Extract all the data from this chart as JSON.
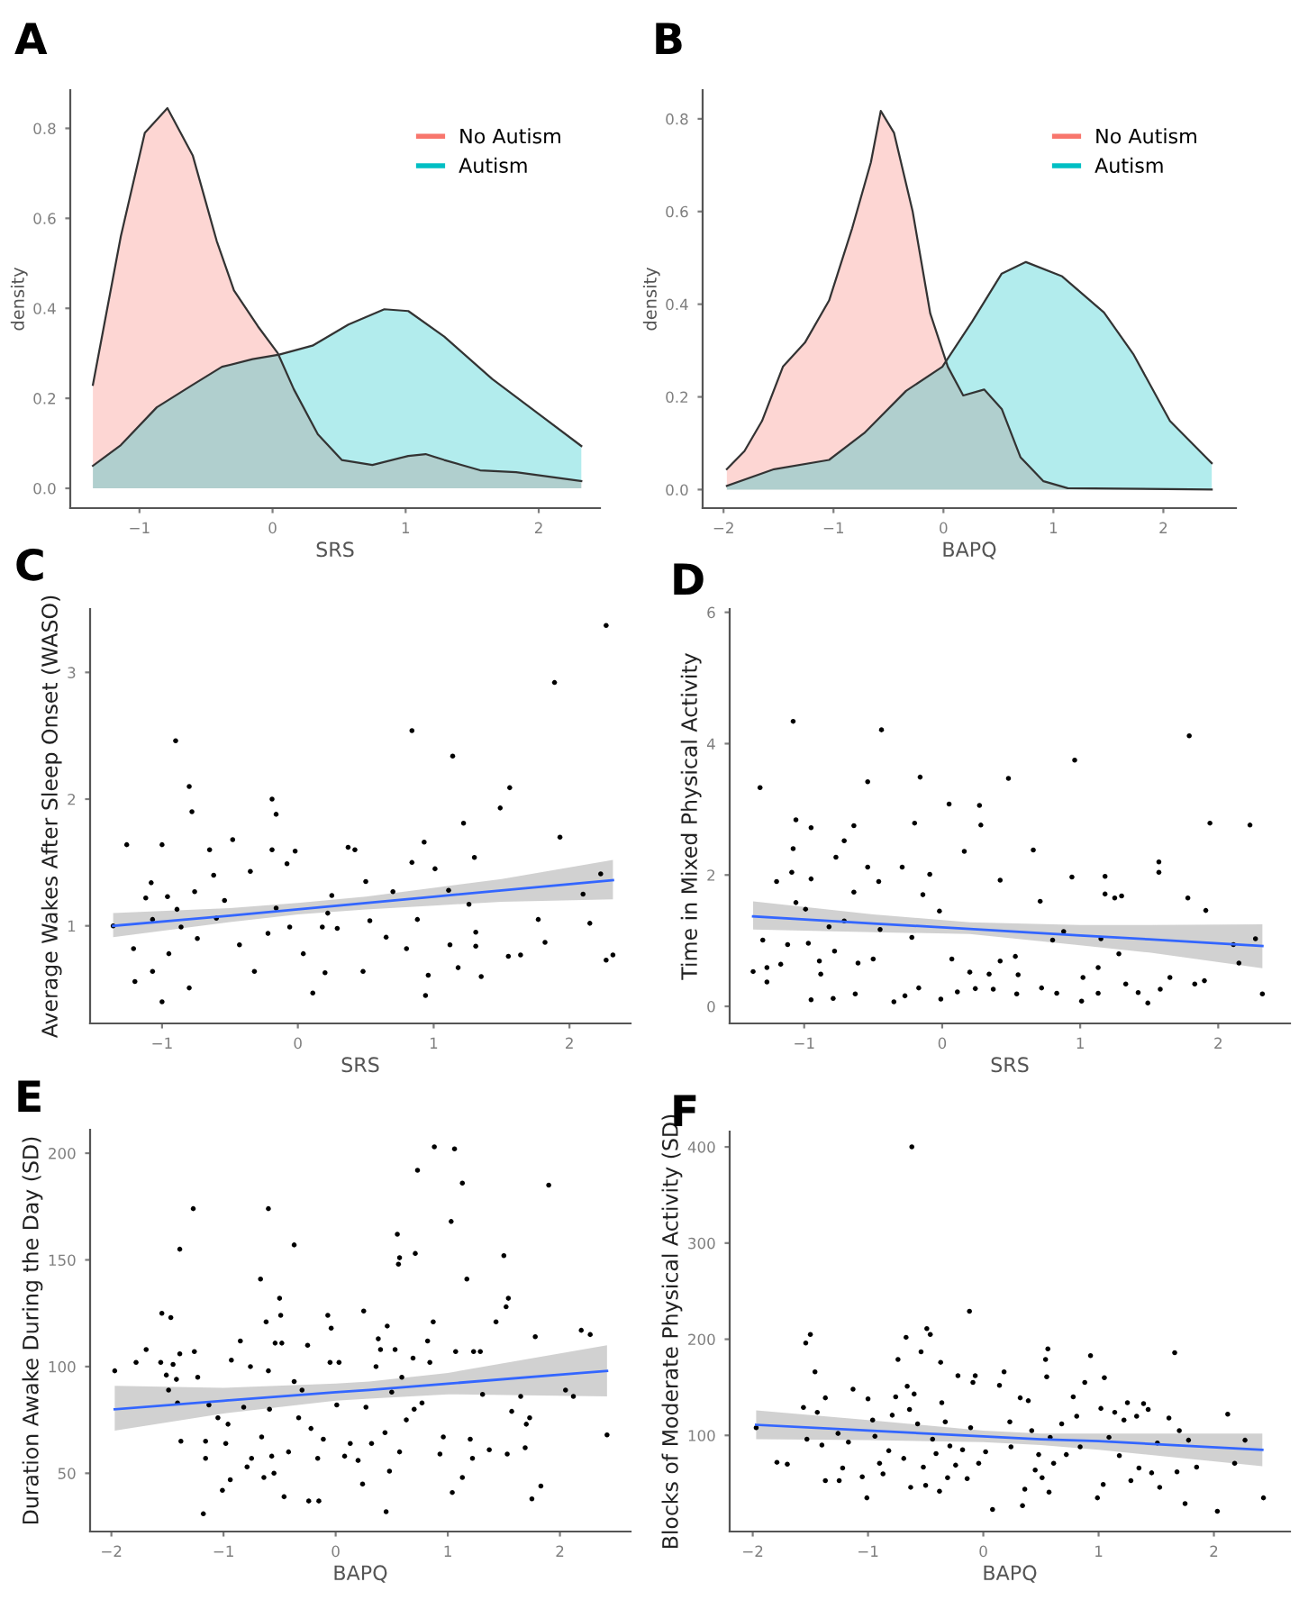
{
  "chart_data": [
    {
      "type": "area",
      "title": "A",
      "xlabel": "SRS",
      "ylabel": "density",
      "xlim": [
        -1.52,
        2.46
      ],
      "ylim": [
        -0.044,
        0.885
      ],
      "xticks": [
        -1,
        0,
        1,
        2
      ],
      "yticks": [
        {
          "value": 0,
          "label": "0.0"
        },
        0.2,
        0.4,
        0.6,
        0.8
      ],
      "legend": "top right",
      "series": [
        {
          "name": "No Autism",
          "color": "#f8766d",
          "x": [
            -1.35,
            -1.14,
            -0.96,
            -0.79,
            -0.6,
            -0.42,
            -0.29,
            -0.11,
            0.04,
            0.16,
            0.34,
            0.52,
            0.75,
            1.02,
            1.15,
            1.29,
            1.56,
            1.83,
            2.32
          ],
          "values": [
            0.23,
            0.56,
            0.79,
            0.845,
            0.74,
            0.55,
            0.44,
            0.36,
            0.3,
            0.22,
            0.12,
            0.063,
            0.052,
            0.072,
            0.076,
            0.063,
            0.04,
            0.036,
            0.016
          ]
        },
        {
          "name": "Autism",
          "color": "#00bfc4",
          "x": [
            -1.35,
            -1.14,
            -0.87,
            -0.6,
            -0.38,
            -0.15,
            0.05,
            0.3,
            0.57,
            0.84,
            1.02,
            1.29,
            1.65,
            2.01,
            2.32
          ],
          "values": [
            0.05,
            0.096,
            0.18,
            0.23,
            0.27,
            0.287,
            0.297,
            0.317,
            0.364,
            0.398,
            0.394,
            0.337,
            0.243,
            0.163,
            0.094
          ]
        }
      ]
    },
    {
      "type": "area",
      "title": "B",
      "xlabel": "BAPQ",
      "ylabel": "density",
      "xlim": [
        -2.19,
        2.66
      ],
      "ylim": [
        -0.04,
        0.862
      ],
      "xticks": [
        -2,
        -1,
        0,
        1,
        2
      ],
      "yticks": [
        {
          "value": 0,
          "label": "0.0"
        },
        0.2,
        0.4,
        0.6,
        0.8
      ],
      "legend": "top right",
      "series": [
        {
          "name": "No Autism",
          "color": "#f8766d",
          "x": [
            -1.97,
            -1.81,
            -1.65,
            -1.46,
            -1.26,
            -1.04,
            -0.83,
            -0.66,
            -0.57,
            -0.45,
            -0.28,
            -0.12,
            0.04,
            0.18,
            0.37,
            0.53,
            0.7,
            0.91,
            1.13,
            2.44
          ],
          "values": [
            0.044,
            0.083,
            0.148,
            0.265,
            0.317,
            0.408,
            0.564,
            0.706,
            0.817,
            0.77,
            0.6,
            0.38,
            0.265,
            0.203,
            0.216,
            0.174,
            0.07,
            0.018,
            0.003,
            0
          ]
        },
        {
          "name": "Autism",
          "color": "#00bfc4",
          "x": [
            -1.97,
            -1.54,
            -1.04,
            -0.72,
            -0.34,
            -0.01,
            0.26,
            0.53,
            0.75,
            1.08,
            1.46,
            1.73,
            2.06,
            2.44
          ],
          "values": [
            0.008,
            0.044,
            0.064,
            0.122,
            0.213,
            0.265,
            0.362,
            0.466,
            0.491,
            0.46,
            0.382,
            0.291,
            0.148,
            0.057
          ]
        }
      ]
    },
    {
      "type": "scatter",
      "title": "C",
      "xlabel": "SRS",
      "ylabel": "Average Wakes After Sleep Onset (WASO)",
      "xlim": [
        -1.53,
        2.45
      ],
      "ylim": [
        0.23,
        3.5
      ],
      "xticks": [
        -1,
        0,
        1,
        2
      ],
      "yticks": [
        1,
        2,
        3
      ],
      "series": [
        {
          "type": "scatter",
          "color": "#000000",
          "marker": "circle",
          "x": [
            -1.36,
            -1.26,
            -1.21,
            -1.2,
            -1.0,
            -1.0,
            -0.9,
            -0.8,
            -0.78,
            -0.8,
            -0.65,
            -0.48,
            -0.19,
            -0.19,
            -0.16,
            -0.02,
            0.11,
            0.25,
            0.37,
            0.42,
            0.5,
            0.48,
            0.84,
            0.84,
            0.93,
            0.94,
            0.96,
            1.14,
            1.12,
            1.18,
            1.22,
            1.3,
            1.35,
            1.49,
            1.56,
            1.55,
            1.64,
            1.77,
            1.82,
            1.89,
            1.93,
            2.1,
            2.15,
            2.23,
            2.27,
            2.27,
            2.32,
            -1.08,
            -1.12,
            -1.07,
            -1.07,
            -0.96,
            -0.95,
            -0.89,
            -0.86,
            -0.76,
            -0.74,
            -0.62,
            -0.6,
            -0.54,
            -0.43,
            -0.35,
            -0.32,
            -0.22,
            -0.16,
            -0.08,
            -0.06,
            0.04,
            0.18,
            0.22,
            0.2,
            0.29,
            0.53,
            0.65,
            0.7,
            0.8,
            0.88,
            1.01,
            1.11,
            1.26,
            1.31,
            1.31
          ],
          "values": [
            1.0,
            1.64,
            0.82,
            0.56,
            0.4,
            1.64,
            2.46,
            2.1,
            1.9,
            0.51,
            1.6,
            1.68,
            1.6,
            2.0,
            1.88,
            1.59,
            0.47,
            1.24,
            1.62,
            1.6,
            1.35,
            0.64,
            1.5,
            2.54,
            1.66,
            0.45,
            0.61,
            2.34,
            0.85,
            0.67,
            1.81,
            1.54,
            0.6,
            1.93,
            2.09,
            0.76,
            0.77,
            1.05,
            0.87,
            2.92,
            1.7,
            1.25,
            1.02,
            1.41,
            3.37,
            0.73,
            0.77,
            1.34,
            1.22,
            1.05,
            0.64,
            1.23,
            0.78,
            1.13,
            0.99,
            1.27,
            0.9,
            1.4,
            1.06,
            1.2,
            0.85,
            1.43,
            0.64,
            0.94,
            1.14,
            1.49,
            0.99,
            0.78,
            0.99,
            1.1,
            0.63,
            0.98,
            1.04,
            0.91,
            1.27,
            0.82,
            1.05,
            1.45,
            1.28,
            1.17,
            0.95,
            0.84
          ]
        },
        {
          "type": "line",
          "color": "#3366ff",
          "x": [
            -1.36,
            -0.5,
            0,
            0.5,
            1,
            1.5,
            2.32
          ],
          "values": [
            1.0,
            1.08,
            1.13,
            1.18,
            1.23,
            1.28,
            1.36
          ],
          "lower": [
            0.91,
            1.03,
            1.09,
            1.13,
            1.16,
            1.19,
            1.21
          ],
          "upper": [
            1.1,
            1.14,
            1.18,
            1.23,
            1.3,
            1.37,
            1.52
          ]
        }
      ]
    },
    {
      "type": "scatter",
      "title": "D",
      "xlabel": "SRS",
      "ylabel": "Time in Mixed Physical Activity",
      "xlim": [
        -1.54,
        2.52
      ],
      "ylim": [
        -0.26,
        6.05
      ],
      "xticks": [
        -1,
        0,
        1,
        2
      ],
      "yticks": [
        0,
        2,
        4,
        6
      ],
      "series": [
        {
          "type": "scatter",
          "color": "#000000",
          "marker": "circle",
          "x": [
            -1.37,
            -1.32,
            -1.3,
            -1.27,
            -1.27,
            -1.2,
            -1.17,
            -1.12,
            -1.08,
            -1.08,
            -1.06,
            -1.09,
            -1.06,
            -0.99,
            -0.97,
            -0.95,
            -0.95,
            -0.95,
            -0.89,
            -0.88,
            -0.82,
            -0.77,
            -0.79,
            -0.78,
            -0.71,
            -0.71,
            -0.64,
            -0.64,
            -0.63,
            -0.61,
            -0.54,
            -0.54,
            -0.5,
            -0.46,
            -0.44,
            -0.45,
            -0.35,
            -0.29,
            -0.27,
            -0.22,
            -0.2,
            -0.17,
            -0.16,
            -0.14,
            -0.09,
            -0.02,
            -0.01,
            0.05,
            0.07,
            0.11,
            0.16,
            0.2,
            0.24,
            0.27,
            0.28,
            0.34,
            0.37,
            0.42,
            0.42,
            0.48,
            0.53,
            0.55,
            0.54,
            0.66,
            0.71,
            0.72,
            0.8,
            0.83,
            0.88,
            0.94,
            0.96,
            1.01,
            1.02,
            1.13,
            1.13,
            1.15,
            1.18,
            1.18,
            1.25,
            1.28,
            1.3,
            1.33,
            1.42,
            1.49,
            1.57,
            1.57,
            1.58,
            1.65,
            1.78,
            1.79,
            1.83,
            1.9,
            1.91,
            1.94,
            2.11,
            2.15,
            2.23,
            2.27,
            2.32
          ],
          "values": [
            0.53,
            3.33,
            1.01,
            0.59,
            0.37,
            1.9,
            0.64,
            0.94,
            2.4,
            4.34,
            2.84,
            2.04,
            1.58,
            1.48,
            0.96,
            0.1,
            2.72,
            1.94,
            0.69,
            0.49,
            1.21,
            2.27,
            0.12,
            0.84,
            2.52,
            1.3,
            2.75,
            1.74,
            0.19,
            0.66,
            2.12,
            3.42,
            0.72,
            1.9,
            4.21,
            1.17,
            0.07,
            2.12,
            0.16,
            1.05,
            2.79,
            0.28,
            3.49,
            1.7,
            2.01,
            1.45,
            0.11,
            3.08,
            0.72,
            0.22,
            2.36,
            0.52,
            0.27,
            3.06,
            2.76,
            0.49,
            0.26,
            1.92,
            0.69,
            3.47,
            0.76,
            0.48,
            0.19,
            2.38,
            1.6,
            0.28,
            1.01,
            0.2,
            1.14,
            1.97,
            3.75,
            0.08,
            0.44,
            0.59,
            0.2,
            1.03,
            1.98,
            1.71,
            1.65,
            0.8,
            1.68,
            0.34,
            0.21,
            0.05,
            2.2,
            2.04,
            0.26,
            0.44,
            1.65,
            4.12,
            0.34,
            0.39,
            1.46,
            2.79,
            0.94,
            0.66,
            2.76,
            1.03,
            0.19
          ]
        },
        {
          "type": "line",
          "color": "#3366ff",
          "x": [
            -1.37,
            -0.5,
            0.2,
            1,
            1.5,
            2.32
          ],
          "values": [
            1.37,
            1.26,
            1.18,
            1.08,
            1.02,
            0.92
          ],
          "lower": [
            1.17,
            1.13,
            1.1,
            0.93,
            0.82,
            0.58
          ],
          "upper": [
            1.6,
            1.4,
            1.28,
            1.24,
            1.24,
            1.25
          ]
        }
      ]
    },
    {
      "type": "scatter",
      "title": "E",
      "xlabel": "BAPQ",
      "ylabel": "Duration Awake During the Day (SD)",
      "xlim": [
        -2.19,
        2.63
      ],
      "ylim": [
        22.7,
        211
      ],
      "xticks": [
        -2,
        -1,
        0,
        1,
        2
      ],
      "yticks": [
        50,
        100,
        150,
        200
      ],
      "series": [
        {
          "type": "scatter",
          "color": "#000000",
          "marker": "circle",
          "x": [
            -1.97,
            -1.78,
            -1.69,
            -1.55,
            -1.56,
            -1.51,
            -1.47,
            -1.49,
            -1.45,
            -1.42,
            -1.41,
            -1.39,
            -1.39,
            -1.38,
            -1.27,
            -1.26,
            -1.23,
            -1.16,
            -1.16,
            -1.18,
            -1.13,
            -1.05,
            -1.01,
            -0.98,
            -0.96,
            -0.94,
            -0.93,
            -0.85,
            -0.82,
            -0.79,
            -0.76,
            -0.75,
            -0.67,
            -0.66,
            -0.64,
            -0.62,
            -0.6,
            -0.6,
            -0.59,
            -0.57,
            -0.55,
            -0.54,
            -0.5,
            -0.49,
            -0.48,
            -0.46,
            -0.42,
            -0.37,
            -0.37,
            -0.33,
            -0.3,
            -0.25,
            -0.24,
            -0.22,
            -0.15,
            -0.16,
            -0.11,
            -0.07,
            -0.05,
            -0.04,
            0.01,
            0.03,
            0.08,
            0.13,
            0.2,
            0.24,
            0.25,
            0.27,
            0.32,
            0.36,
            0.38,
            0.4,
            0.44,
            0.45,
            0.46,
            0.48,
            0.5,
            0.53,
            0.55,
            0.56,
            0.57,
            0.57,
            0.59,
            0.63,
            0.69,
            0.7,
            0.71,
            0.73,
            0.77,
            0.82,
            0.84,
            0.87,
            0.88,
            0.93,
            0.96,
            1.03,
            1.04,
            1.06,
            1.07,
            1.13,
            1.13,
            1.17,
            1.2,
            1.22,
            1.23,
            1.29,
            1.31,
            1.37,
            1.43,
            1.5,
            1.52,
            1.54,
            1.53,
            1.57,
            1.65,
            1.69,
            1.7,
            1.73,
            1.75,
            1.78,
            1.83,
            1.9,
            2.05,
            2.12,
            2.19,
            2.27,
            2.42
          ],
          "values": [
            98,
            102,
            108,
            125,
            102,
            96,
            123,
            89,
            101,
            94,
            83,
            155,
            106,
            65,
            174,
            107,
            95,
            65,
            57,
            31,
            82,
            76,
            42,
            64,
            73,
            47,
            103,
            112,
            81,
            53,
            100,
            57,
            141,
            67,
            48,
            121,
            174,
            98,
            80,
            58,
            50,
            111,
            132,
            124,
            111,
            39,
            60,
            157,
            93,
            76,
            89,
            110,
            37,
            71,
            37,
            57,
            66,
            124,
            102,
            118,
            82,
            102,
            58,
            64,
            56,
            45,
            126,
            81,
            64,
            100,
            113,
            108,
            69,
            32,
            119,
            51,
            88,
            108,
            162,
            148,
            151,
            60,
            95,
            75,
            104,
            80,
            153,
            192,
            83,
            112,
            102,
            121,
            203,
            59,
            67,
            168,
            41,
            202,
            107,
            48,
            186,
            141,
            66,
            57,
            107,
            107,
            87,
            61,
            121,
            152,
            128,
            132,
            59,
            79,
            86,
            62,
            73,
            76,
            38,
            114,
            44,
            185,
            89,
            86,
            117,
            115,
            68
          ]
        },
        {
          "type": "line",
          "color": "#3366ff",
          "x": [
            -1.97,
            -1,
            0,
            0.3,
            1,
            2.42
          ],
          "values": [
            80,
            84,
            88,
            89,
            92,
            98
          ],
          "lower": [
            70,
            78,
            84,
            85,
            87,
            86
          ],
          "upper": [
            91,
            90,
            92,
            93,
            97,
            110
          ]
        }
      ]
    },
    {
      "type": "scatter",
      "title": "F",
      "xlabel": "BAPQ",
      "ylabel": "Blocks of Moderate Physical Activity (SD)",
      "xlim": [
        -2.2,
        2.66
      ],
      "ylim": [
        0,
        416
      ],
      "xticks": [
        -2,
        -1,
        0,
        1,
        2
      ],
      "yticks": [
        100,
        200,
        300,
        400
      ],
      "series": [
        {
          "type": "scatter",
          "color": "#000000",
          "marker": "circle",
          "x": [
            -1.97,
            -1.79,
            -1.7,
            -1.56,
            -1.54,
            -1.5,
            -1.53,
            -1.46,
            -1.44,
            -1.4,
            -1.37,
            -1.37,
            -1.26,
            -1.25,
            -1.22,
            -1.17,
            -1.13,
            -1.05,
            -1.01,
            -1.0,
            -0.96,
            -0.94,
            -0.9,
            -0.87,
            -0.82,
            -0.79,
            -0.76,
            -0.74,
            -0.69,
            -0.67,
            -0.66,
            -0.64,
            -0.63,
            -0.62,
            -0.6,
            -0.57,
            -0.54,
            -0.52,
            -0.5,
            -0.49,
            -0.46,
            -0.44,
            -0.41,
            -0.38,
            -0.37,
            -0.36,
            -0.33,
            -0.31,
            -0.29,
            -0.24,
            -0.22,
            -0.18,
            -0.14,
            -0.12,
            -0.11,
            -0.09,
            -0.07,
            -0.04,
            0.02,
            0.08,
            0.14,
            0.18,
            0.23,
            0.24,
            0.32,
            0.34,
            0.36,
            0.39,
            0.42,
            0.45,
            0.48,
            0.51,
            0.54,
            0.55,
            0.56,
            0.58,
            0.57,
            0.61,
            0.68,
            0.72,
            0.78,
            0.81,
            0.84,
            0.88,
            0.93,
            0.99,
            1.02,
            1.04,
            1.05,
            1.09,
            1.14,
            1.18,
            1.22,
            1.25,
            1.28,
            1.33,
            1.35,
            1.39,
            1.43,
            1.46,
            1.51,
            1.53,
            1.61,
            1.66,
            1.68,
            1.7,
            1.75,
            1.78,
            1.85,
            2.03,
            2.12,
            2.18,
            2.27,
            2.43
          ],
          "values": [
            108,
            72,
            70,
            129,
            196,
            205,
            96,
            166,
            124,
            90,
            139,
            53,
            102,
            53,
            66,
            93,
            148,
            57,
            35,
            138,
            116,
            99,
            71,
            60,
            84,
            121,
            140,
            179,
            76,
            202,
            151,
            127,
            46,
            400,
            143,
            112,
            187,
            67,
            48,
            211,
            205,
            96,
            81,
            42,
            176,
            134,
            114,
            56,
            89,
            69,
            162,
            85,
            55,
            229,
            108,
            155,
            162,
            71,
            83,
            23,
            152,
            166,
            114,
            88,
            139,
            27,
            44,
            136,
            105,
            64,
            80,
            56,
            179,
            161,
            190,
            98,
            41,
            71,
            112,
            80,
            140,
            120,
            88,
            155,
            183,
            35,
            128,
            49,
            160,
            98,
            124,
            79,
            116,
            134,
            53,
            120,
            66,
            133,
            127,
            61,
            92,
            46,
            118,
            186,
            62,
            105,
            29,
            95,
            67,
            21,
            122,
            71,
            95,
            35
          ]
        },
        {
          "type": "line",
          "color": "#3366ff",
          "x": [
            -1.97,
            -1,
            0,
            0.5,
            1,
            2.42
          ],
          "values": [
            111,
            105,
            99,
            96,
            94,
            85
          ],
          "lower": [
            96,
            95,
            93,
            90,
            85,
            68
          ],
          "upper": [
            126,
            116,
            105,
            102,
            102,
            102
          ]
        }
      ]
    }
  ]
}
